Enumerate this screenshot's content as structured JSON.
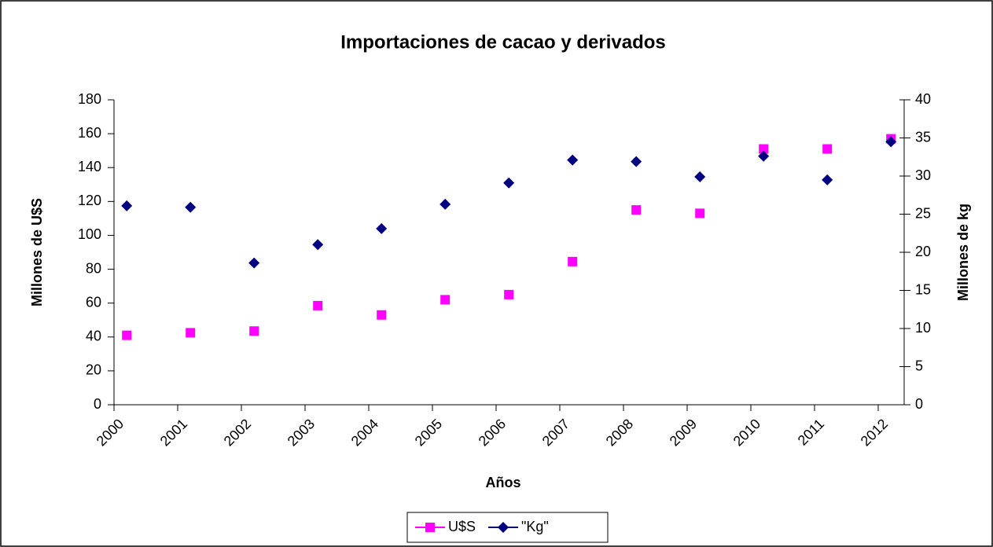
{
  "chart_data": {
    "type": "scatter",
    "title": "Importaciones de cacao y derivados",
    "x_label": "Años",
    "y_label": "Millones de U$S",
    "y2_label": "Millones de kg",
    "categories": [
      "2000",
      "2001",
      "2002",
      "2003",
      "2004",
      "2005",
      "2006",
      "2007",
      "2008",
      "2009",
      "2010",
      "2011",
      "2012"
    ],
    "series": [
      {
        "name": "U$S",
        "color": "#ff00ff",
        "marker": "square",
        "values": [
          41,
          42.5,
          43.5,
          58.5,
          53,
          62,
          65,
          84.5,
          115,
          113,
          151,
          151,
          157
        ]
      },
      {
        "name": "\"Kg\"",
        "color": "#000080",
        "marker": "diamond",
        "axis": "y2",
        "values": [
          26.1,
          25.9,
          18.6,
          21.0,
          23.1,
          26.3,
          29.1,
          32.1,
          31.9,
          29.9,
          32.6,
          29.5,
          34.5
        ]
      }
    ],
    "ylim": [
      0,
      180
    ],
    "yticks": [
      0,
      20,
      40,
      60,
      80,
      100,
      120,
      140,
      160,
      180
    ],
    "y2lim": [
      0,
      40
    ],
    "y2ticks": [
      0,
      5,
      10,
      15,
      20,
      25,
      30,
      35,
      40
    ],
    "legend": "bottom",
    "grid": false
  }
}
